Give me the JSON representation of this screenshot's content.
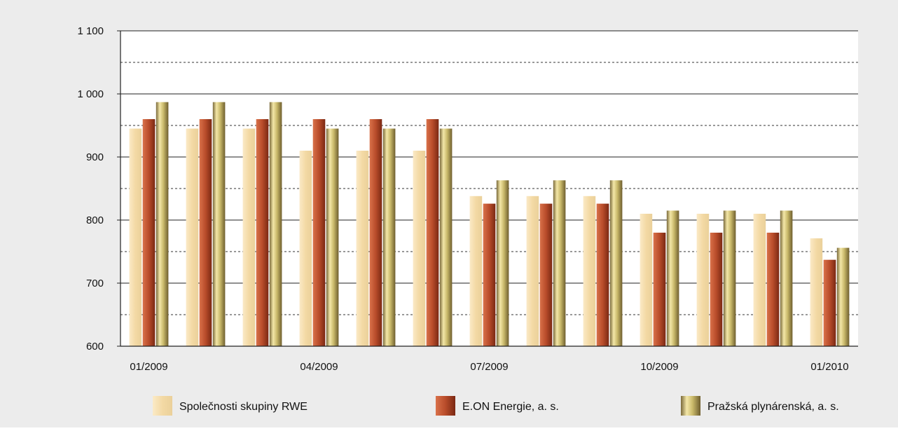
{
  "chart_data": {
    "type": "bar",
    "title": "",
    "xlabel": "",
    "ylabel": "",
    "ylim": [
      600,
      1100
    ],
    "y_ticks": [
      "600",
      "700",
      "800",
      "900",
      "1 000",
      "1 100"
    ],
    "y_tick_values": [
      600,
      700,
      800,
      900,
      1000,
      1100
    ],
    "categories": [
      "01/2009",
      "02/2009",
      "03/2009",
      "04/2009",
      "05/2009",
      "06/2009",
      "07/2009",
      "08/2009",
      "09/2009",
      "10/2009",
      "11/2009",
      "12/2009",
      "01/2010"
    ],
    "x_tick_labels": [
      "01/2009",
      "",
      "",
      "04/2009",
      "",
      "",
      "07/2009",
      "",
      "",
      "10/2009",
      "",
      "",
      "01/2010"
    ],
    "grid": {
      "major": true,
      "minor_dashed": true
    },
    "legend_position": "bottom",
    "series": [
      {
        "name": "Společnosti skupiny RWE",
        "color": "#f3d9a4",
        "values": [
          945,
          945,
          945,
          910,
          910,
          910,
          838,
          838,
          838,
          810,
          810,
          810,
          771
        ]
      },
      {
        "name": "E.ON Energie, a. s.",
        "color": "#b84c2a",
        "values": [
          960,
          960,
          960,
          960,
          960,
          960,
          826,
          826,
          826,
          780,
          780,
          780,
          737
        ]
      },
      {
        "name": "Pražská plynárenská, a. s.",
        "color": "#c9b96a",
        "values": [
          987,
          987,
          987,
          945,
          945,
          945,
          863,
          863,
          863,
          815,
          815,
          815,
          756
        ]
      }
    ]
  }
}
